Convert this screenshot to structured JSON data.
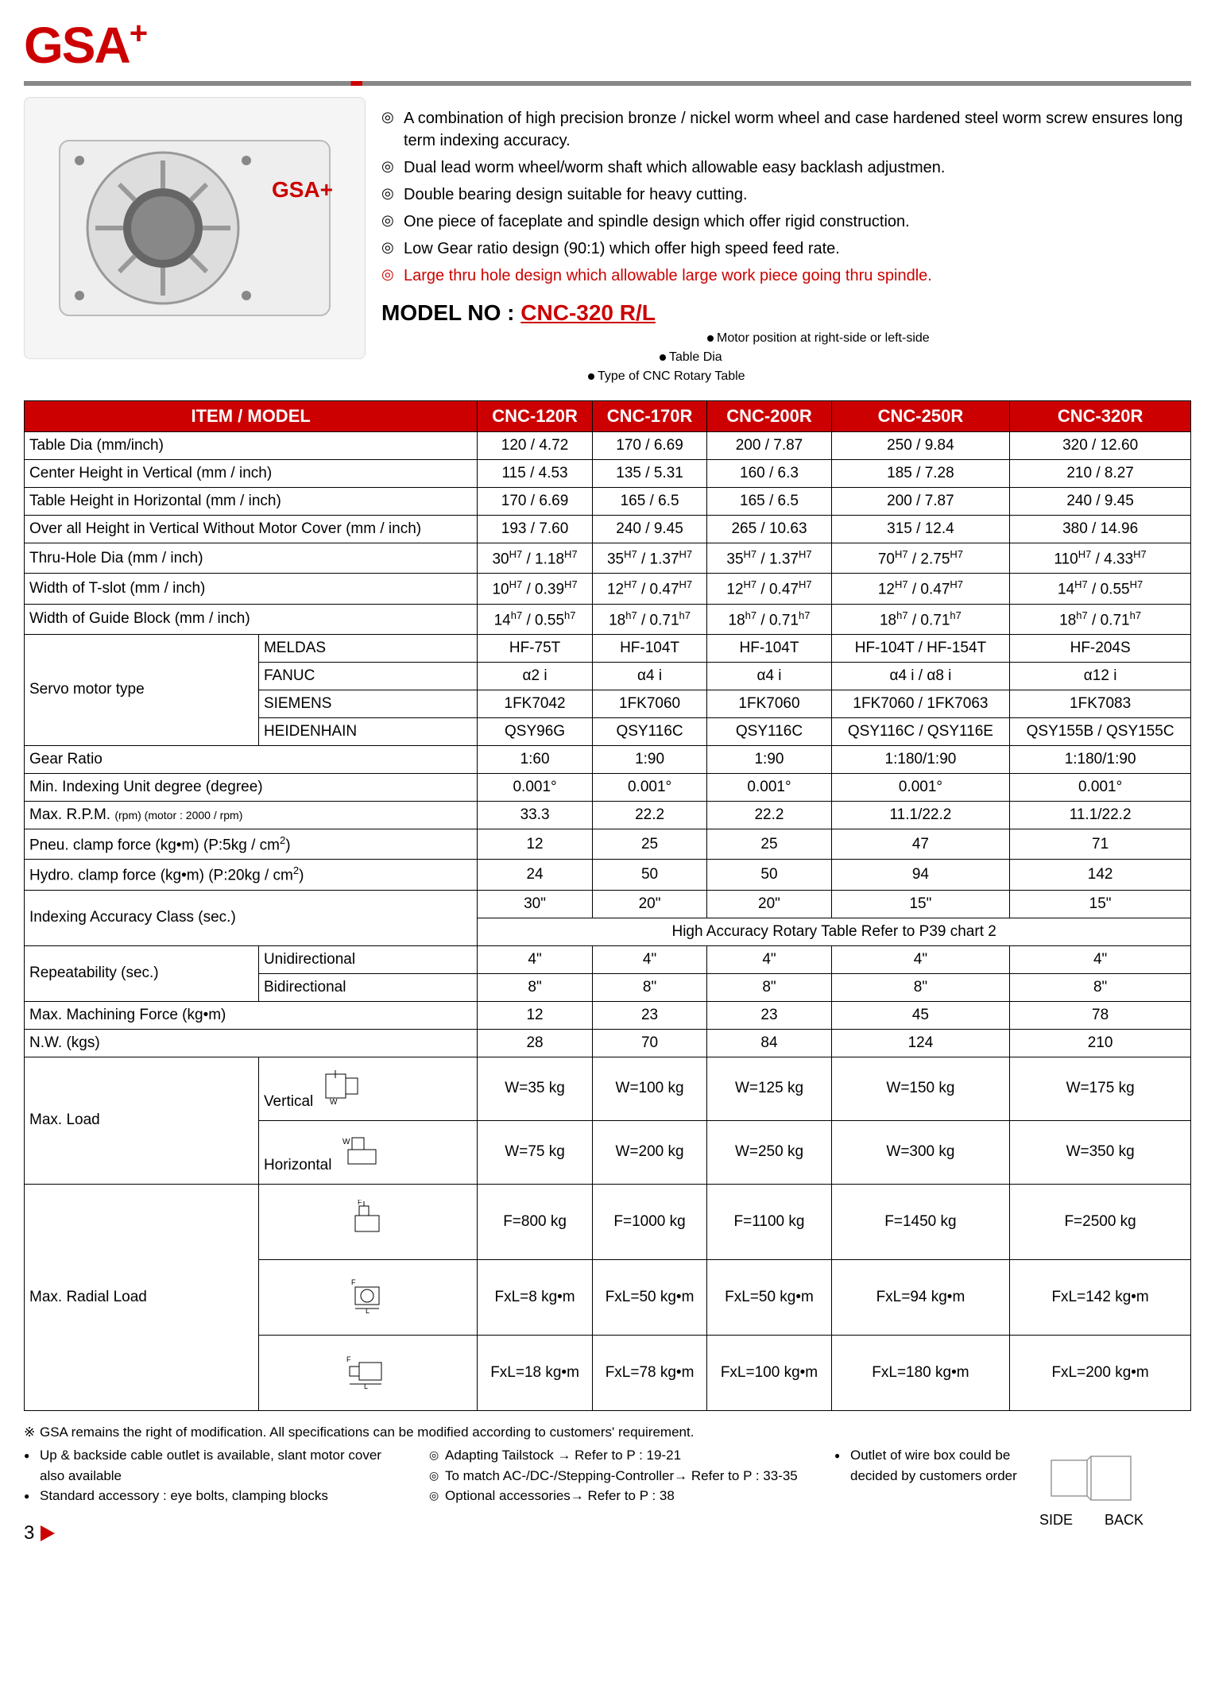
{
  "logo_text": "GSA",
  "logo_sup": "+",
  "product_brand": "GSA+",
  "bullets": [
    "A combination of high precision bronze / nickel worm wheel and case hardened steel worm screw ensures long term indexing accuracy.",
    "Dual lead worm wheel/worm shaft which allowable easy backlash adjustmen.",
    "Double bearing design suitable for heavy cutting.",
    "One piece of faceplate and spindle design which offer rigid construction.",
    "Low Gear ratio design (90:1) which offer high speed feed rate.",
    "Large thru hole design which allowable large work piece going thru spindle."
  ],
  "bullet_red_index": 5,
  "model_label": "MODEL NO : ",
  "model_parts": [
    "CNC",
    "-320",
    " R/L"
  ],
  "callouts": [
    "Motor position at right-side or left-side",
    "Table Dia",
    "Type of CNC Rotary Table"
  ],
  "table": {
    "header_item": "ITEM / MODEL",
    "models": [
      "CNC-120R",
      "CNC-170R",
      "CNC-200R",
      "CNC-250R",
      "CNC-320R"
    ],
    "rows": [
      {
        "label": "Table Dia (mm/inch)",
        "vals": [
          "120 / 4.72",
          "170 / 6.69",
          "200 / 7.87",
          "250 / 9.84",
          "320 / 12.60"
        ]
      },
      {
        "label": "Center Height in Vertical (mm / inch)",
        "vals": [
          "115 / 4.53",
          "135 / 5.31",
          "160 / 6.3",
          "185 / 7.28",
          "210 / 8.27"
        ]
      },
      {
        "label": "Table Height in Horizontal (mm / inch)",
        "vals": [
          "170 / 6.69",
          "165 / 6.5",
          "165 / 6.5",
          "200 / 7.87",
          "240 / 9.45"
        ]
      },
      {
        "label": "Over all Height in Vertical Without Motor Cover (mm / inch)",
        "vals": [
          "193 / 7.60",
          "240 / 9.45",
          "265 / 10.63",
          "315 / 12.4",
          "380 / 14.96"
        ]
      }
    ],
    "sup_rows": [
      {
        "label": "Thru-Hole Dia (mm / inch)",
        "vals": [
          [
            "30",
            "H7",
            " / 1.18",
            "H7"
          ],
          [
            "35",
            "H7",
            " / 1.37",
            "H7"
          ],
          [
            "35",
            "H7",
            " / 1.37",
            "H7"
          ],
          [
            "70",
            "H7",
            " / 2.75",
            "H7"
          ],
          [
            "110",
            "H7",
            " / 4.33",
            "H7"
          ]
        ]
      },
      {
        "label": "Width of T-slot (mm / inch)",
        "vals": [
          [
            "10",
            "H7",
            " / 0.39",
            "H7"
          ],
          [
            "12",
            "H7",
            " / 0.47",
            "H7"
          ],
          [
            "12",
            "H7",
            " / 0.47",
            "H7"
          ],
          [
            "12",
            "H7",
            " / 0.47",
            "H7"
          ],
          [
            "14",
            "H7",
            " / 0.55",
            "H7"
          ]
        ]
      },
      {
        "label": "Width of Guide Block (mm / inch)",
        "vals": [
          [
            "14",
            "h7",
            " / 0.55",
            "h7"
          ],
          [
            "18",
            "h7",
            " / 0.71",
            "h7"
          ],
          [
            "18",
            "h7",
            " / 0.71",
            "h7"
          ],
          [
            "18",
            "h7",
            " / 0.71",
            "h7"
          ],
          [
            "18",
            "h7",
            " / 0.71",
            "h7"
          ]
        ]
      }
    ],
    "servo_label": "Servo motor type",
    "servo": [
      {
        "sub": "MELDAS",
        "vals": [
          "HF-75T",
          "HF-104T",
          "HF-104T",
          "HF-104T / HF-154T",
          "HF-204S"
        ]
      },
      {
        "sub": "FANUC",
        "vals": [
          "α2 i",
          "α4 i",
          "α4 i",
          "α4 i / α8 i",
          "α12 i"
        ]
      },
      {
        "sub": "SIEMENS",
        "vals": [
          "1FK7042",
          "1FK7060",
          "1FK7060",
          "1FK7060 / 1FK7063",
          "1FK7083"
        ]
      },
      {
        "sub": "HEIDENHAIN",
        "vals": [
          "QSY96G",
          "QSY116C",
          "QSY116C",
          "QSY116C / QSY116E",
          "QSY155B / QSY155C"
        ]
      }
    ],
    "rows2": [
      {
        "label": "Gear Ratio",
        "vals": [
          "1:60",
          "1:90",
          "1:90",
          "1:180/1:90",
          "1:180/1:90"
        ]
      },
      {
        "label": "Min. Indexing Unit degree (degree)",
        "vals": [
          "0.001°",
          "0.001°",
          "0.001°",
          "0.001°",
          "0.001°"
        ]
      },
      {
        "label_html": "Max. R.P.M. <span class='small'>(rpm) (motor : 2000 / rpm)</span>",
        "vals": [
          "33.3",
          "22.2",
          "22.2",
          "11.1/22.2",
          "11.1/22.2"
        ]
      },
      {
        "label_html": "Pneu. clamp force (kg•m) (P:5kg / cm<span class='sup'>2</span>)",
        "vals": [
          "12",
          "25",
          "25",
          "47",
          "71"
        ]
      },
      {
        "label_html": "Hydro. clamp force (kg•m) (P:20kg / cm<span class='sup'>2</span>)",
        "vals": [
          "24",
          "50",
          "50",
          "94",
          "142"
        ]
      }
    ],
    "indexing_label": "Indexing Accuracy Class (sec.)",
    "indexing_vals": [
      "30\"",
      "20\"",
      "20\"",
      "15\"",
      "15\""
    ],
    "indexing_note": "High Accuracy Rotary Table    Refer to P39 chart 2",
    "repeat_label": "Repeatability (sec.)",
    "repeat": [
      {
        "sub": "Unidirectional",
        "vals": [
          "4\"",
          "4\"",
          "4\"",
          "4\"",
          "4\""
        ]
      },
      {
        "sub": "Bidirectional",
        "vals": [
          "8\"",
          "8\"",
          "8\"",
          "8\"",
          "8\""
        ]
      }
    ],
    "rows3": [
      {
        "label": "Max. Machining Force (kg•m)",
        "vals": [
          "12",
          "23",
          "23",
          "45",
          "78"
        ]
      },
      {
        "label": "N.W. (kgs)",
        "vals": [
          "28",
          "70",
          "84",
          "124",
          "210"
        ]
      }
    ],
    "maxload_label": "Max. Load",
    "maxload": [
      {
        "sub": "Vertical",
        "diagram": "v",
        "vals": [
          "W=35 kg",
          "W=100 kg",
          "W=125 kg",
          "W=150 kg",
          "W=175 kg"
        ]
      },
      {
        "sub": "Horizontal",
        "diagram": "h",
        "vals": [
          "W=75 kg",
          "W=200 kg",
          "W=250 kg",
          "W=300 kg",
          "W=350 kg"
        ]
      }
    ],
    "radial_label": "Max. Radial Load",
    "radial": [
      {
        "diagram": "r1",
        "vals": [
          "F=800 kg",
          "F=1000 kg",
          "F=1100 kg",
          "F=1450 kg",
          "F=2500 kg"
        ]
      },
      {
        "diagram": "r2",
        "vals": [
          "FxL=8 kg•m",
          "FxL=50 kg•m",
          "FxL=50 kg•m",
          "FxL=94 kg•m",
          "FxL=142 kg•m"
        ]
      },
      {
        "diagram": "r3",
        "vals": [
          "FxL=18 kg•m",
          "FxL=78 kg•m",
          "FxL=100 kg•m",
          "FxL=180 kg•m",
          "FxL=200 kg•m"
        ]
      }
    ]
  },
  "footer": {
    "star": "GSA remains the right of modification. All specifications can be modified according to customers' requirement.",
    "left": [
      "Up & backside cable outlet is available, slant motor cover also available",
      "Standard accessory : eye bolts, clamping blocks"
    ],
    "mid": [
      "Adapting Tailstock →  Refer to P : 19-21",
      "To match AC-/DC-/Stepping-Controller→  Refer to P : 33-35",
      "Optional accessories→  Refer to P : 38"
    ],
    "right": "Outlet of wire box could be decided by customers order",
    "side": "SIDE",
    "back": "BACK"
  },
  "page_number": "3",
  "colors": {
    "red": "#cc0000",
    "gray": "#888888"
  }
}
